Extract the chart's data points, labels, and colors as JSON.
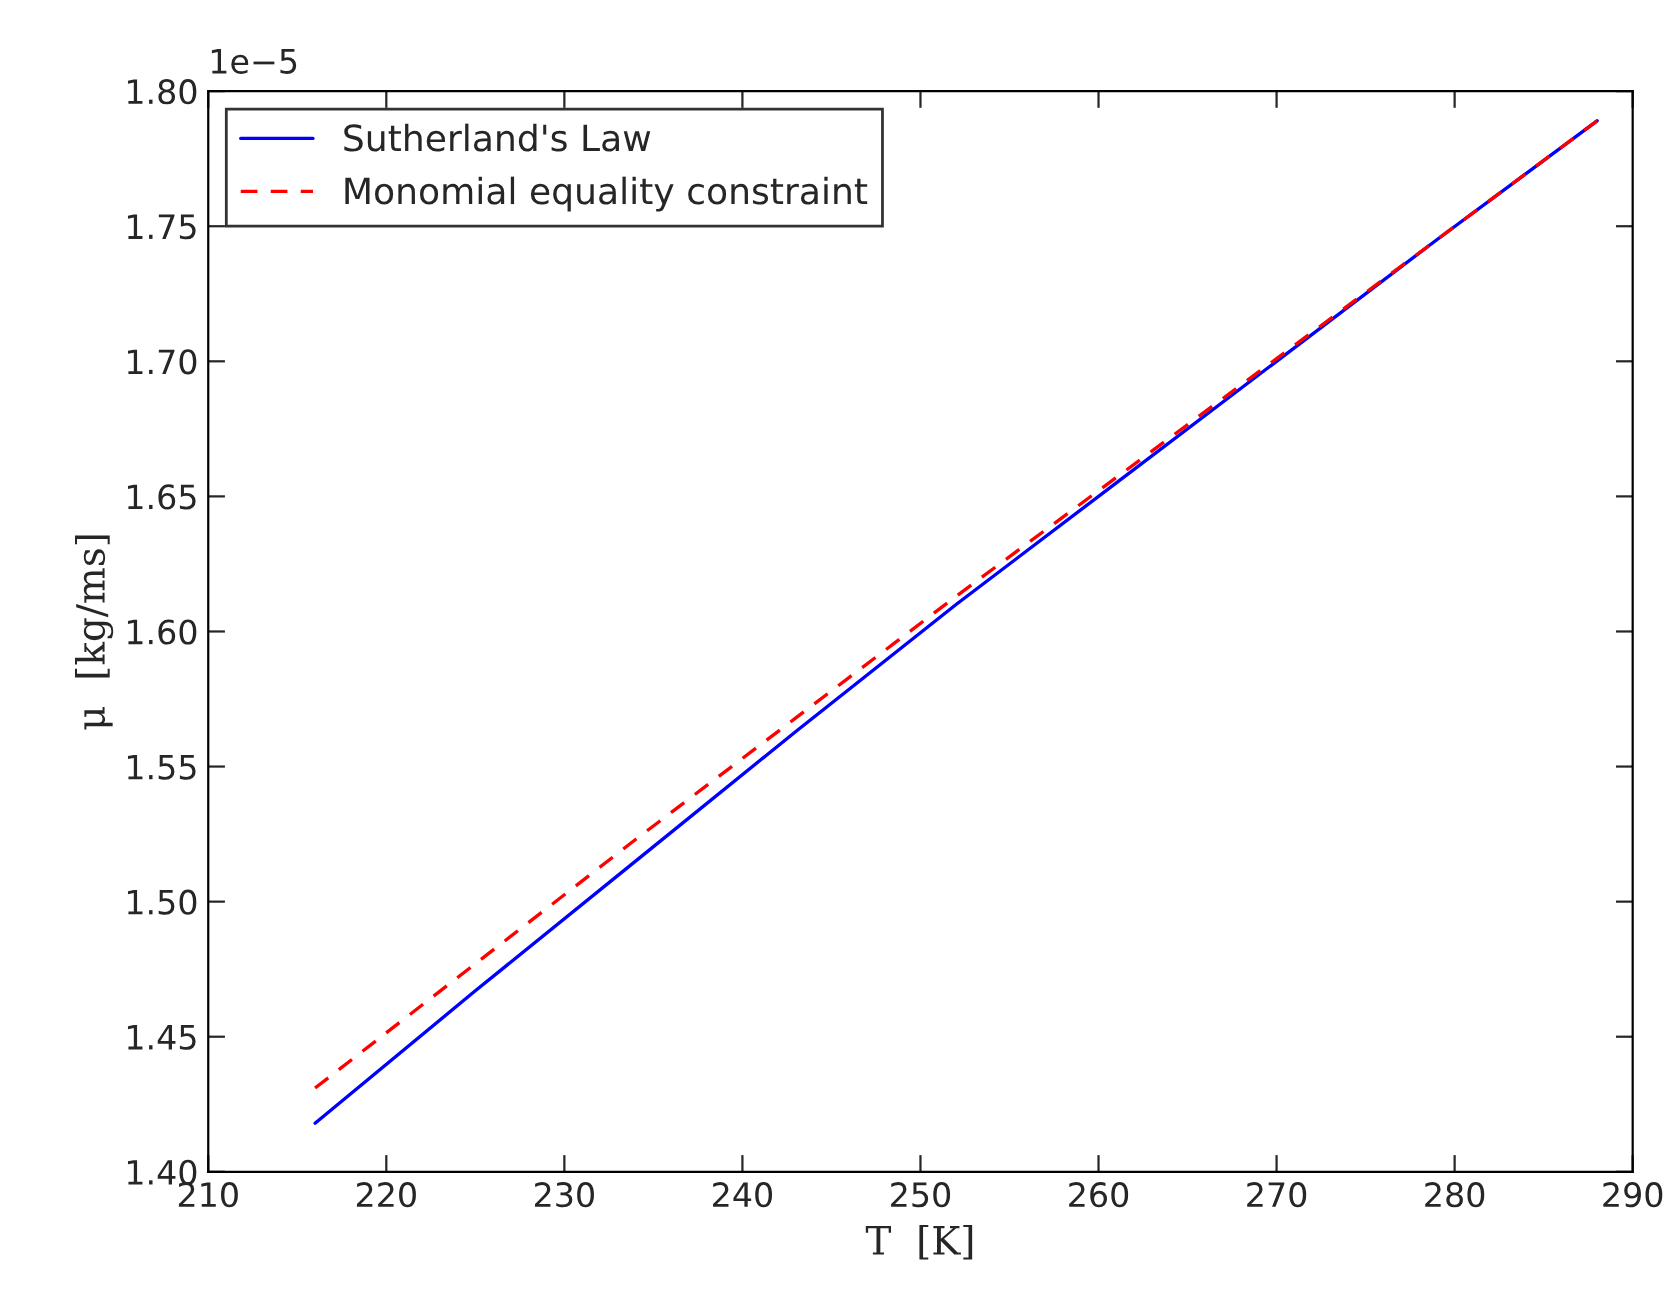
{
  "chart_data": {
    "type": "line",
    "xlabel": "T  [K]",
    "ylabel": "μ  [kg/ms]",
    "x": [
      216,
      225,
      234,
      243,
      252,
      261,
      270,
      279,
      288
    ],
    "series": [
      {
        "name": "Sutherland's Law",
        "color": "#0000ff",
        "line_style": "solid",
        "values": [
          1.418,
          1.467,
          1.515,
          1.563,
          1.61,
          1.655,
          1.7,
          1.745,
          1.789
        ]
      },
      {
        "name": "Monomial equality constraint",
        "color": "#ff0000",
        "line_style": "dashed",
        "values": [
          1.431,
          1.477,
          1.523,
          1.568,
          1.613,
          1.657,
          1.701,
          1.745,
          1.789
        ]
      }
    ],
    "xlim": [
      210,
      290
    ],
    "xticks": [
      210,
      220,
      230,
      240,
      250,
      260,
      270,
      280,
      290
    ],
    "ylim": [
      1.4,
      1.8
    ],
    "yticks": [
      {
        "value": 1.4,
        "label": "1.40"
      },
      {
        "value": 1.45,
        "label": "1.45"
      },
      {
        "value": 1.5,
        "label": "1.50"
      },
      {
        "value": 1.55,
        "label": "1.55"
      },
      {
        "value": 1.6,
        "label": "1.60"
      },
      {
        "value": 1.65,
        "label": "1.65"
      },
      {
        "value": 1.7,
        "label": "1.70"
      },
      {
        "value": 1.75,
        "label": "1.75"
      },
      {
        "value": 1.8,
        "label": "1.80"
      }
    ],
    "annotations": [
      "1e−5"
    ],
    "legend": "top left",
    "grid": false
  }
}
